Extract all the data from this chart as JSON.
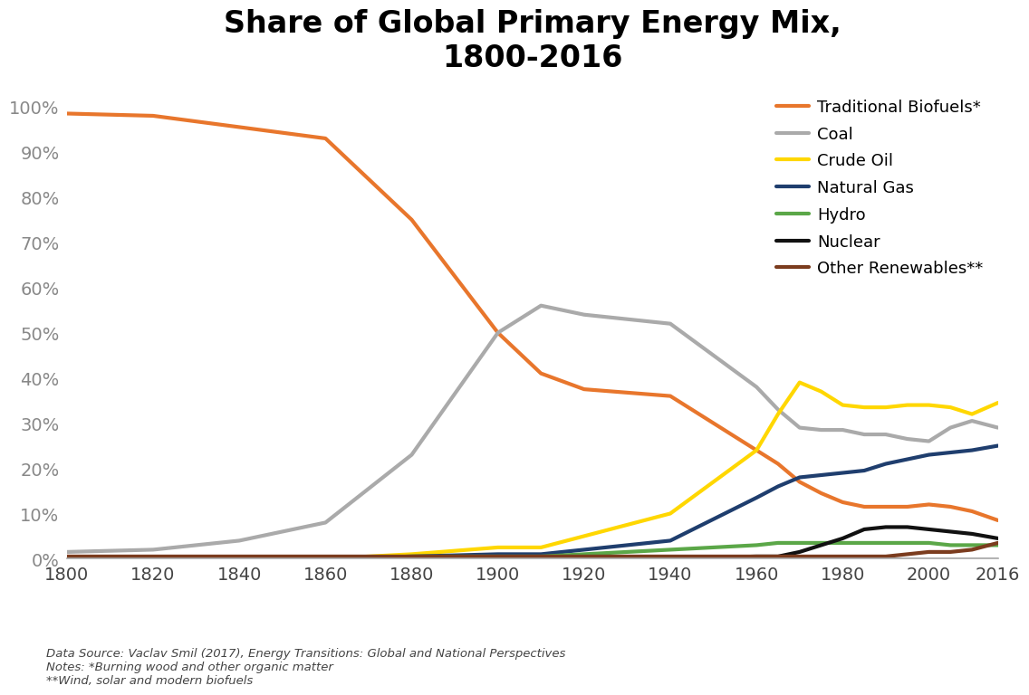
{
  "title": "Share of Global Primary Energy Mix,\n1800-2016",
  "years": [
    1800,
    1820,
    1840,
    1860,
    1880,
    1900,
    1910,
    1920,
    1940,
    1960,
    1965,
    1970,
    1975,
    1980,
    1985,
    1990,
    1995,
    2000,
    2005,
    2010,
    2016
  ],
  "traditional_biofuels": [
    98.5,
    98.0,
    95.5,
    93.0,
    75.0,
    50.0,
    41.0,
    37.5,
    36.0,
    24.0,
    21.0,
    17.0,
    14.5,
    12.5,
    11.5,
    11.5,
    11.5,
    12.0,
    11.5,
    10.5,
    8.5
  ],
  "coal": [
    1.5,
    2.0,
    4.0,
    8.0,
    23.0,
    50.0,
    56.0,
    54.0,
    52.0,
    38.0,
    33.0,
    29.0,
    28.5,
    28.5,
    27.5,
    27.5,
    26.5,
    26.0,
    29.0,
    30.5,
    29.0
  ],
  "crude_oil": [
    0.0,
    0.0,
    0.0,
    0.0,
    1.0,
    2.5,
    2.5,
    5.0,
    10.0,
    24.0,
    32.0,
    39.0,
    37.0,
    34.0,
    33.5,
    33.5,
    34.0,
    34.0,
    33.5,
    32.0,
    34.5
  ],
  "natural_gas": [
    0.0,
    0.0,
    0.0,
    0.0,
    0.5,
    1.0,
    1.0,
    2.0,
    4.0,
    13.5,
    16.0,
    18.0,
    18.5,
    19.0,
    19.5,
    21.0,
    22.0,
    23.0,
    23.5,
    24.0,
    25.0
  ],
  "hydro": [
    0.0,
    0.0,
    0.0,
    0.0,
    0.5,
    0.5,
    0.5,
    1.0,
    2.0,
    3.0,
    3.5,
    3.5,
    3.5,
    3.5,
    3.5,
    3.5,
    3.5,
    3.5,
    3.0,
    3.0,
    3.0
  ],
  "nuclear": [
    0.0,
    0.0,
    0.0,
    0.0,
    0.0,
    0.0,
    0.0,
    0.0,
    0.0,
    0.5,
    0.5,
    1.5,
    3.0,
    4.5,
    6.5,
    7.0,
    7.0,
    6.5,
    6.0,
    5.5,
    4.5
  ],
  "other_renewables": [
    0.5,
    0.5,
    0.5,
    0.5,
    0.5,
    0.5,
    0.5,
    0.5,
    0.5,
    0.5,
    0.5,
    0.5,
    0.5,
    0.5,
    0.5,
    0.5,
    1.0,
    1.5,
    1.5,
    2.0,
    3.5
  ],
  "colors": {
    "traditional_biofuels": "#E8762C",
    "coal": "#AAAAAA",
    "crude_oil": "#FFD700",
    "natural_gas": "#1F3E6E",
    "hydro": "#5BA748",
    "nuclear": "#111111",
    "other_renewables": "#7B3C1E"
  },
  "legend_labels": {
    "traditional_biofuels": "Traditional Biofuels*",
    "coal": "Coal",
    "crude_oil": "Crude Oil",
    "natural_gas": "Natural Gas",
    "hydro": "Hydro",
    "nuclear": "Nuclear",
    "other_renewables": "Other Renewables**"
  },
  "footnote": "Data Source: Vaclav Smil (2017), Energy Transitions: Global and National Perspectives\nNotes: *Burning wood and other organic matter\n**Wind, solar and modern biofuels",
  "xlim": [
    1800,
    2016
  ],
  "ylim": [
    0,
    105
  ],
  "yticks": [
    0,
    10,
    20,
    30,
    40,
    50,
    60,
    70,
    80,
    90,
    100
  ],
  "xticks": [
    1800,
    1820,
    1840,
    1860,
    1880,
    1900,
    1920,
    1940,
    1960,
    1980,
    2000,
    2016
  ],
  "linewidth": 3.0,
  "background_color": "#FFFFFF",
  "tick_color": "#888888",
  "tick_fontsize": 14,
  "title_fontsize": 24,
  "legend_fontsize": 13
}
